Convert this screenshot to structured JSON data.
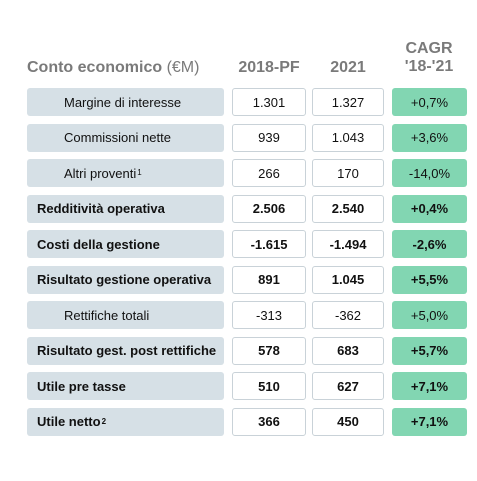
{
  "header": {
    "title": "Conto economico",
    "unit": "(€M)",
    "col_2018": "2018-PF",
    "col_2021": "2021",
    "col_cagr_line1": "CAGR",
    "col_cagr_line2": "'18-'21"
  },
  "rows": [
    {
      "label": "Margine di interesse",
      "sup": "",
      "v2018": "1.301",
      "v2021": "1.327",
      "cagr": "+0,7%"
    },
    {
      "label": "Commissioni nette",
      "sup": "",
      "v2018": "939",
      "v2021": "1.043",
      "cagr": "+3,6%"
    },
    {
      "label": "Altri proventi",
      "sup": "1",
      "v2018": "266",
      "v2021": "170",
      "cagr": "-14,0%"
    },
    {
      "label": "Redditività operativa",
      "sup": "",
      "v2018": "2.506",
      "v2021": "2.540",
      "cagr": "+0,4%"
    },
    {
      "label": "Costi della gestione",
      "sup": "",
      "v2018": "-1.615",
      "v2021": "-1.494",
      "cagr": "-2,6%"
    },
    {
      "label": "Risultato gestione operativa",
      "sup": "",
      "v2018": "891",
      "v2021": "1.045",
      "cagr": "+5,5%"
    },
    {
      "label": "Rettifiche totali",
      "sup": "",
      "v2018": "-313",
      "v2021": "-362",
      "cagr": "+5,0%"
    },
    {
      "label": "Risultato gest. post rettifiche",
      "sup": "",
      "v2018": "578",
      "v2021": "683",
      "cagr": "+5,7%"
    },
    {
      "label": "Utile pre tasse",
      "sup": "",
      "v2018": "510",
      "v2021": "627",
      "cagr": "+7,1%"
    },
    {
      "label": "Utile netto",
      "sup": "2",
      "v2018": "366",
      "v2021": "450",
      "cagr": "+7,1%"
    }
  ],
  "colors": {
    "label_bg": "#d6e0e6",
    "cagr_bg": "#82d6b2",
    "header_text": "#7a7a7a"
  }
}
